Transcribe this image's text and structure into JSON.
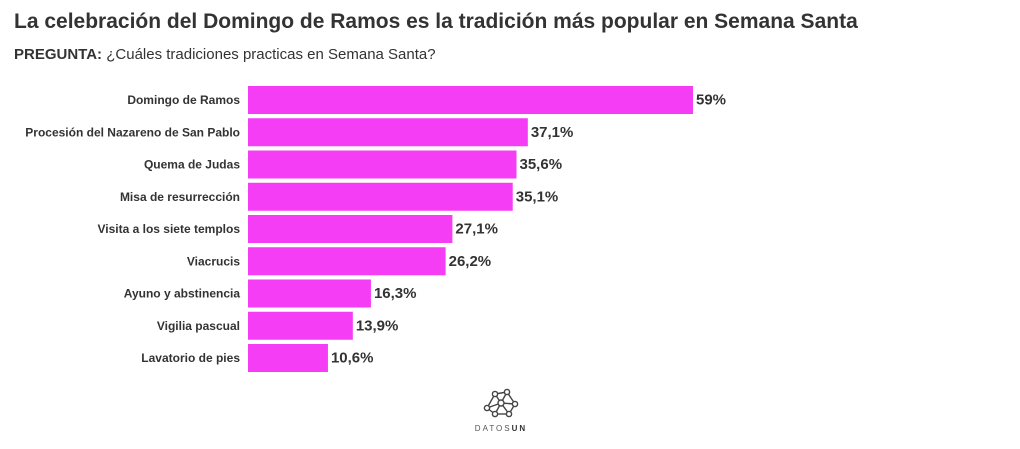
{
  "header": {
    "title": "La celebración del Domingo de Ramos es la tradición más popular en Semana Santa",
    "subtitle_prefix": "PREGUNTA:",
    "subtitle_text": "¿Cuáles tradiciones practicas en Semana Santa?"
  },
  "chart_data": {
    "type": "bar",
    "orientation": "horizontal",
    "categories": [
      "Domingo de Ramos",
      "Procesión del Nazareno de San Pablo",
      "Quema de Judas",
      "Misa de resurrección",
      "Visita a los siete templos",
      "Viacrucis",
      "Ayuno y abstinencia",
      "Vigilia pascual",
      "Lavatorio de pies"
    ],
    "values": [
      59,
      37.1,
      35.6,
      35.1,
      27.1,
      26.2,
      16.3,
      13.9,
      10.6
    ],
    "value_labels": [
      "59%",
      "37,1%",
      "35,6%",
      "35,1%",
      "27,1%",
      "26,2%",
      "16,3%",
      "13,9%",
      "10,6%"
    ],
    "xlim": [
      0,
      59
    ],
    "bar_color": "#f53df5",
    "grid": false,
    "legend": "none"
  },
  "footer": {
    "logo_text_a": "DATOS",
    "logo_text_b": "UN"
  }
}
